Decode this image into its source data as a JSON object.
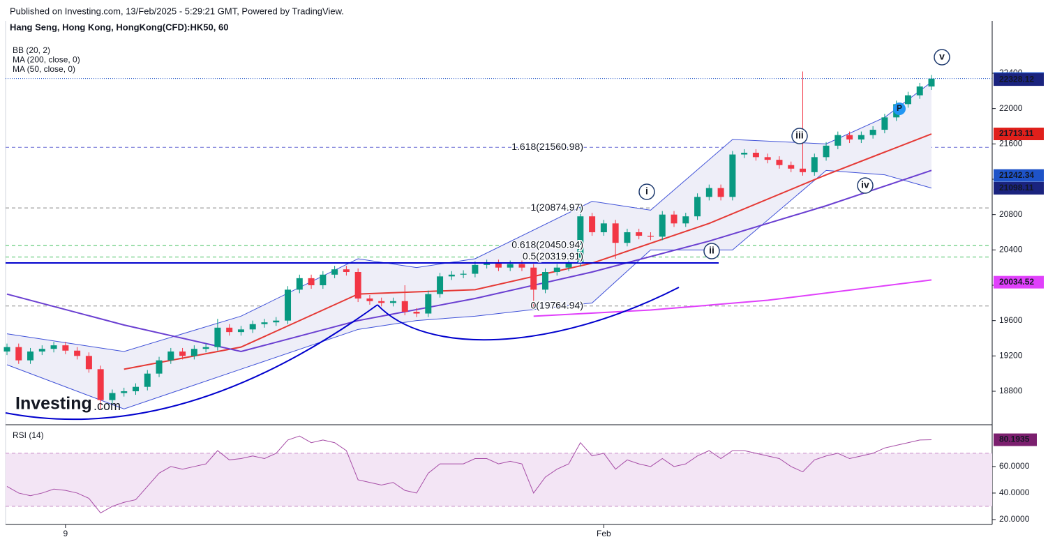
{
  "header": {
    "published": "Published on Investing.com, 13/Feb/2025 - 5:29:21 GMT, Powered by TradingView.",
    "symbol": "Hang Seng, Hong Kong, HongKong(CFD):HK50, 60"
  },
  "logo": [
    "Investing",
    ".com"
  ],
  "waves": [
    "i",
    "ii",
    "iii",
    "iv",
    "v"
  ],
  "marker": "P",
  "chart_data": [
    {
      "type": "candlestick",
      "legend": [
        "BB (20, 2)",
        "MA (200, close, 0)",
        "MA (50, close, 0)"
      ],
      "categories": [
        null,
        null,
        null,
        null,
        null,
        "9",
        null,
        null,
        null,
        null,
        null,
        null,
        null,
        null,
        null,
        null,
        null,
        null,
        null,
        null,
        null,
        null,
        null,
        null,
        null,
        null,
        null,
        null,
        null,
        null,
        null,
        null,
        null,
        null,
        null,
        null,
        null,
        null,
        null,
        null,
        null,
        null,
        null,
        null,
        null,
        null,
        null,
        null,
        null,
        null,
        null,
        "Feb",
        null,
        null,
        null,
        null,
        null,
        null,
        null,
        null,
        null,
        null,
        null,
        null,
        null,
        null,
        null,
        null,
        null,
        null,
        null,
        null,
        null,
        null,
        null,
        null,
        null,
        null,
        null,
        null
      ],
      "up_color": "#089981",
      "down_color": "#f23645",
      "open": [
        19250,
        19300,
        19150,
        19250,
        19280,
        19320,
        19260,
        19200,
        19050,
        18700,
        18780,
        18800,
        18850,
        19000,
        19150,
        19250,
        19200,
        19280,
        19300,
        19520,
        19470,
        19500,
        19560,
        19580,
        19600,
        19950,
        20080,
        20000,
        20120,
        20180,
        20150,
        19850,
        19820,
        19800,
        19820,
        19700,
        19680,
        19900,
        20100,
        20120,
        20130,
        20230,
        20250,
        20200,
        20240,
        20200,
        19950,
        20150,
        20200,
        20250,
        20780,
        20600,
        20700,
        20480,
        20600,
        20560,
        20550,
        20800,
        20700,
        20780,
        21000,
        21100,
        21000,
        21480,
        21500,
        21450,
        21420,
        21360,
        21320,
        21280,
        21450,
        21580,
        21700,
        21650,
        21700,
        21760,
        21900,
        22050,
        22150,
        22250
      ],
      "high": [
        19340,
        19340,
        19290,
        19320,
        19360,
        19360,
        19300,
        19240,
        19090,
        18820,
        18840,
        18890,
        19040,
        19190,
        19290,
        19290,
        19320,
        19340,
        19620,
        19560,
        19540,
        19600,
        19620,
        19640,
        19990,
        20120,
        20120,
        20160,
        20220,
        20220,
        20190,
        19890,
        19860,
        19860,
        20000,
        19740,
        19940,
        20140,
        20160,
        20170,
        20270,
        20290,
        20290,
        20280,
        20280,
        20240,
        20190,
        20240,
        20290,
        20880,
        20820,
        20740,
        20740,
        20640,
        20640,
        20600,
        20840,
        20840,
        20820,
        21040,
        21140,
        21140,
        21520,
        21540,
        21540,
        21490,
        21460,
        21400,
        22420,
        21490,
        21620,
        21740,
        21740,
        21740,
        21800,
        21940,
        22090,
        22190,
        22290,
        22380
      ],
      "low": [
        19210,
        19110,
        19110,
        19210,
        19240,
        19220,
        19160,
        19010,
        18600,
        18660,
        18740,
        18760,
        18810,
        18960,
        19110,
        19160,
        19160,
        19240,
        19260,
        19430,
        19430,
        19460,
        19520,
        19540,
        19560,
        19910,
        19960,
        19960,
        20080,
        20110,
        19810,
        19780,
        19760,
        19760,
        19660,
        19640,
        19640,
        19860,
        20060,
        20080,
        20090,
        20190,
        20160,
        20160,
        20160,
        19750,
        19910,
        20110,
        20160,
        20210,
        20560,
        20560,
        20300,
        20440,
        20520,
        20510,
        20510,
        20660,
        20660,
        20740,
        20960,
        20960,
        20960,
        21440,
        21410,
        21380,
        21320,
        21280,
        21240,
        21240,
        21410,
        21540,
        21610,
        21610,
        21660,
        21720,
        21860,
        22010,
        22110,
        22210
      ],
      "close": [
        19300,
        19150,
        19250,
        19280,
        19320,
        19260,
        19200,
        19050,
        18700,
        18780,
        18800,
        18850,
        19000,
        19150,
        19250,
        19200,
        19280,
        19300,
        19520,
        19470,
        19500,
        19560,
        19580,
        19600,
        19950,
        20080,
        20000,
        20120,
        20180,
        20150,
        19850,
        19820,
        19800,
        19820,
        19700,
        19680,
        19900,
        20100,
        20120,
        20130,
        20230,
        20250,
        20200,
        20240,
        20200,
        19950,
        20150,
        20200,
        20250,
        20780,
        20600,
        20700,
        20480,
        20600,
        20560,
        20550,
        20800,
        20700,
        20780,
        21000,
        21100,
        21000,
        21480,
        21500,
        21450,
        21420,
        21360,
        21320,
        21280,
        21450,
        21580,
        21700,
        21650,
        21700,
        21760,
        21900,
        22050,
        22150,
        22250,
        22339.25
      ],
      "bands": {
        "color": "#3f51d8",
        "fill": "#eeeef8",
        "x": [
          0,
          10,
          20,
          30,
          35,
          40,
          50,
          55,
          62,
          70,
          75,
          79
        ],
        "upper": [
          19450,
          19250,
          19650,
          20300,
          20200,
          20300,
          20950,
          20850,
          21650,
          21600,
          21900,
          22300
        ],
        "lower": [
          19100,
          18600,
          19050,
          19500,
          19600,
          19650,
          19800,
          20400,
          20400,
          21300,
          21250,
          21100
        ]
      },
      "lines": [
        {
          "color": "#e53935",
          "x": [
            10,
            20,
            30,
            40,
            50,
            60,
            70,
            79
          ],
          "values": [
            19050,
            19300,
            19900,
            19950,
            20250,
            20700,
            21250,
            21713
          ]
        },
        {
          "color": "#6a3fd1",
          "x": [
            0,
            10,
            20,
            30,
            40,
            50,
            60,
            70,
            79
          ],
          "values": [
            19900,
            19550,
            19250,
            19600,
            19850,
            20150,
            20500,
            20900,
            21300
          ]
        },
        {
          "color": "#e040fb",
          "x": [
            45,
            55,
            65,
            79
          ],
          "values": [
            19650,
            19720,
            19830,
            20060
          ]
        }
      ],
      "ylim": [
        18429,
        22992
      ],
      "yticks": [
        18800,
        19200,
        19600,
        20000,
        20400,
        20800,
        21200,
        21600,
        22000,
        22400
      ],
      "fib": [
        {
          "label": "1.618(21560.98)",
          "value": 21560.98,
          "color": "#6c6fd6"
        },
        {
          "label": "1(20874.97)",
          "value": 20874.97,
          "color": "#888888"
        },
        {
          "label": "0.618(20450.94)",
          "value": 20450.94,
          "color": "#3fbf5a"
        },
        {
          "label": "0.5(20319.91)",
          "value": 20319.91,
          "color": "#3fbf5a"
        },
        {
          "label": "0(19764.94)",
          "value": 19764.94,
          "color": "#888888"
        }
      ],
      "price_tags": [
        {
          "value": 22339.25,
          "color": "#1e53c8"
        },
        {
          "value": 22328.12,
          "color": "#1a237e"
        },
        {
          "value": 21713.11,
          "color": "#e0201b"
        },
        {
          "value": 21242.34,
          "color": "#1e53c8"
        },
        {
          "value": 21098.11,
          "color": "#1a237e"
        },
        {
          "value": 20034.52,
          "color": "#e040fb"
        }
      ]
    },
    {
      "type": "line",
      "title": "RSI (14)",
      "color": "#a64ca6",
      "band": [
        30,
        70
      ],
      "values": [
        45,
        40,
        38,
        40,
        43,
        42,
        40,
        36,
        25,
        30,
        33,
        35,
        45,
        55,
        60,
        58,
        60,
        62,
        72,
        65,
        66,
        68,
        66,
        70,
        80,
        83,
        78,
        80,
        78,
        72,
        50,
        48,
        46,
        48,
        42,
        40,
        55,
        62,
        62,
        62,
        66,
        66,
        62,
        64,
        62,
        40,
        52,
        58,
        62,
        78,
        68,
        70,
        58,
        65,
        62,
        60,
        66,
        60,
        62,
        68,
        72,
        66,
        72,
        72,
        70,
        68,
        66,
        60,
        56,
        65,
        68,
        70,
        66,
        68,
        70,
        74,
        76,
        78,
        80,
        80.1935
      ],
      "tag_color": "#7b1f6e",
      "ylim": [
        16.3,
        91
      ],
      "yticks": [
        {
          "value": 20,
          "label": "20.0000"
        },
        {
          "value": 40,
          "label": "40.0000"
        },
        {
          "value": 60,
          "label": "60.0000"
        }
      ]
    }
  ]
}
